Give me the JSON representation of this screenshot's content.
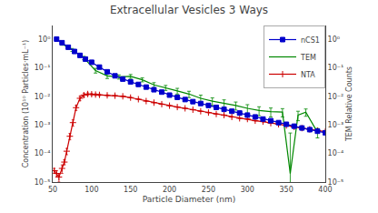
{
  "chart_data": {
    "type": "line",
    "title": "Extracellular Vesicles 3 Ways",
    "xlabel": "Particle Diameter (nm)",
    "ylabel": "Concentration (10¹⁰ Particles·mL⁻¹)",
    "y2label": "TEM Relative Counts",
    "log": "y",
    "grid": false,
    "legend": "upper right",
    "xlim": [
      50,
      400
    ],
    "xticks": [
      50,
      100,
      150,
      200,
      250,
      300,
      350,
      400
    ],
    "ylim": [
      1e-05,
      3
    ],
    "yticks": [
      {
        "value": 1e-05,
        "label": "10⁻⁵"
      },
      {
        "value": 0.0001,
        "label": "10⁻⁴"
      },
      {
        "value": 0.001,
        "label": "10⁻³"
      },
      {
        "value": 0.01,
        "label": "10⁻²"
      },
      {
        "value": 0.1,
        "label": "10⁻¹"
      },
      {
        "value": 1,
        "label": "10⁰"
      }
    ],
    "y2lim": [
      1e-05,
      3
    ],
    "y2ticks": [
      {
        "value": 1e-05,
        "label": "10⁻⁵"
      },
      {
        "value": 0.0001,
        "label": "10⁻⁴"
      },
      {
        "value": 0.001,
        "label": "10⁻³"
      },
      {
        "value": 0.01,
        "label": "10⁻²"
      },
      {
        "value": 0.1,
        "label": "10⁻¹"
      },
      {
        "value": 1,
        "label": "10⁰"
      }
    ],
    "series": [
      {
        "name": "nCS1",
        "color": "#0000cc",
        "marker": "square",
        "x": [
          55,
          62,
          70,
          78,
          85,
          92,
          100,
          110,
          120,
          130,
          140,
          150,
          160,
          170,
          180,
          190,
          200,
          210,
          220,
          230,
          240,
          250,
          260,
          270,
          280,
          290,
          300,
          310,
          320,
          330,
          340,
          350,
          360,
          370,
          380,
          390,
          400
        ],
        "values": [
          1.0,
          0.75,
          0.52,
          0.37,
          0.27,
          0.2,
          0.155,
          0.105,
          0.072,
          0.052,
          0.04,
          0.032,
          0.026,
          0.021,
          0.017,
          0.014,
          0.011,
          0.0092,
          0.0077,
          0.0065,
          0.0056,
          0.0048,
          0.0041,
          0.0035,
          0.003,
          0.0026,
          0.0022,
          0.0019,
          0.0016,
          0.0014,
          0.0012,
          0.00105,
          0.0009,
          0.00078,
          0.00068,
          0.0006,
          0.00053
        ]
      },
      {
        "name": "TEM",
        "color": "#008800",
        "x": [
          62,
          75,
          90,
          105,
          120,
          135,
          150,
          165,
          180,
          195,
          210,
          225,
          240,
          255,
          270,
          285,
          300,
          315,
          330,
          345,
          355,
          365,
          375,
          390
        ],
        "values": [
          0.68,
          0.42,
          0.22,
          0.08,
          0.052,
          0.048,
          0.05,
          0.038,
          0.025,
          0.02,
          0.0155,
          0.012,
          0.0085,
          0.0068,
          0.0057,
          0.0048,
          0.0038,
          0.0032,
          0.0029,
          0.0028,
          2e-05,
          0.0022,
          0.0028,
          0.00055
        ],
        "yerr": [
          0.07,
          0.05,
          0.03,
          0.015,
          0.01,
          0.008,
          0.008,
          0.006,
          0.005,
          0.004,
          0.0035,
          0.003,
          0.0025,
          0.002,
          0.0018,
          0.0015,
          0.0013,
          0.0011,
          0.001,
          0.0009,
          0.0005,
          0.0008,
          0.0008,
          0.0002
        ]
      },
      {
        "name": "NTA",
        "color": "#cc0000",
        "marker": "cross",
        "x": [
          52,
          55,
          58,
          62,
          65,
          68,
          72,
          76,
          80,
          85,
          90,
          95,
          100,
          105,
          110,
          120,
          130,
          140,
          150,
          160,
          170,
          180,
          190,
          200,
          210,
          220,
          230,
          240,
          250,
          260,
          270,
          280,
          290,
          300,
          310,
          320,
          330,
          340,
          350,
          360,
          370,
          380,
          390,
          400
        ],
        "values": [
          2.5e-05,
          2e-05,
          1.5e-05,
          3e-05,
          5e-05,
          0.00012,
          0.0004,
          0.0012,
          0.004,
          0.0085,
          0.011,
          0.012,
          0.0118,
          0.0115,
          0.0112,
          0.0108,
          0.0105,
          0.01,
          0.009,
          0.0079,
          0.0068,
          0.006,
          0.0053,
          0.0047,
          0.0042,
          0.0038,
          0.0034,
          0.003,
          0.0027,
          0.0024,
          0.0022,
          0.0019,
          0.0017,
          0.0016,
          0.0014,
          0.0013,
          0.00115,
          0.00105,
          0.00095,
          0.00085,
          0.00077,
          0.0007,
          0.00063,
          0.00058
        ],
        "yerr_lo": [
          5e-06,
          5e-06,
          5e-06,
          1e-05,
          1e-05,
          3e-05,
          0.0001,
          0.0003,
          0.0008,
          0.0015,
          0.0015,
          0.0012,
          0.001,
          0.0008,
          0.0007,
          0.0005,
          0.0004,
          0.0003,
          0.00025,
          0.0002,
          0.00018,
          0.00015,
          0.00013,
          0.00012,
          0.0001,
          9e-05,
          8e-05,
          7e-05,
          6e-05,
          6e-05,
          5e-05,
          5e-05,
          4e-05,
          4e-05,
          4e-05,
          3e-05,
          3e-05,
          3e-05,
          3e-05,
          3e-05,
          2e-05,
          2e-05,
          2e-05,
          2e-05
        ],
        "yerr_hi": [
          5e-06,
          5e-06,
          5e-06,
          1e-05,
          1e-05,
          3e-05,
          0.0001,
          0.0003,
          0.0008,
          0.0015,
          0.0015,
          0.0012,
          0.001,
          0.0008,
          0.0007,
          0.0005,
          0.0004,
          0.0003,
          0.00025,
          0.0002,
          0.00018,
          0.00015,
          0.00013,
          0.00012,
          0.0001,
          9e-05,
          8e-05,
          7e-05,
          6e-05,
          6e-05,
          5e-05,
          5e-05,
          4e-05,
          4e-05,
          4e-05,
          3e-05,
          3e-05,
          3e-05,
          3e-05,
          3e-05,
          2e-05,
          2e-05,
          2e-05,
          2e-05
        ]
      }
    ]
  }
}
